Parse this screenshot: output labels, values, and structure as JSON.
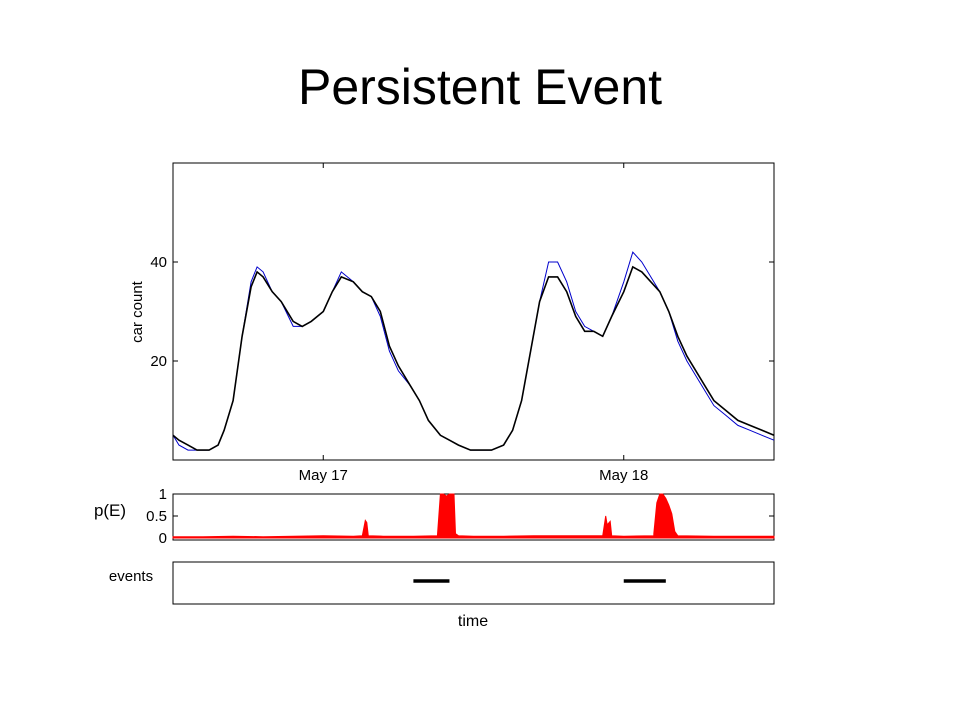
{
  "slide": {
    "title": "Persistent Event"
  },
  "colors": {
    "raw_count": "#0000cc",
    "smoothed_count": "#000000",
    "probability": "#ff0000",
    "event_bar": "#000000"
  },
  "chart_data": [
    {
      "type": "line",
      "ylabel": "car count",
      "ylim": [
        0,
        60
      ],
      "yticks": [
        20,
        40
      ],
      "xlim": [
        0,
        2.0
      ],
      "xticks": [
        {
          "x": 0.5,
          "label": "May 17"
        },
        {
          "x": 1.5,
          "label": "May 18"
        }
      ],
      "x_unit": "days since start of May 16",
      "series": [
        {
          "color": "#0000cc",
          "points": [
            [
              0,
              5
            ],
            [
              0.02,
              3
            ],
            [
              0.05,
              2
            ],
            [
              0.08,
              2
            ],
            [
              0.1,
              2
            ],
            [
              0.12,
              2
            ],
            [
              0.15,
              3
            ],
            [
              0.17,
              6
            ],
            [
              0.2,
              12
            ],
            [
              0.23,
              25
            ],
            [
              0.26,
              36
            ],
            [
              0.28,
              39
            ],
            [
              0.3,
              38
            ],
            [
              0.33,
              34
            ],
            [
              0.36,
              32
            ],
            [
              0.4,
              27
            ],
            [
              0.43,
              27
            ],
            [
              0.46,
              28
            ],
            [
              0.5,
              30
            ],
            [
              0.53,
              34
            ],
            [
              0.56,
              38
            ],
            [
              0.6,
              36
            ],
            [
              0.63,
              34
            ],
            [
              0.66,
              33
            ],
            [
              0.69,
              29
            ],
            [
              0.72,
              22
            ],
            [
              0.75,
              18
            ],
            [
              0.79,
              15
            ],
            [
              0.82,
              12
            ],
            [
              0.85,
              8
            ],
            [
              0.89,
              5
            ],
            [
              0.92,
              4
            ],
            [
              0.95,
              3
            ],
            [
              0.99,
              2
            ],
            [
              1.02,
              2
            ],
            [
              1.06,
              2
            ],
            [
              1.1,
              3
            ],
            [
              1.13,
              6
            ],
            [
              1.16,
              12
            ],
            [
              1.19,
              22
            ],
            [
              1.22,
              32
            ],
            [
              1.25,
              40
            ],
            [
              1.28,
              40
            ],
            [
              1.31,
              36
            ],
            [
              1.34,
              30
            ],
            [
              1.37,
              27
            ],
            [
              1.4,
              26
            ],
            [
              1.43,
              25
            ],
            [
              1.46,
              29
            ],
            [
              1.5,
              36
            ],
            [
              1.53,
              42
            ],
            [
              1.56,
              40
            ],
            [
              1.59,
              37
            ],
            [
              1.62,
              34
            ],
            [
              1.65,
              30
            ],
            [
              1.68,
              24
            ],
            [
              1.71,
              20
            ],
            [
              1.74,
              17
            ],
            [
              1.77,
              14
            ],
            [
              1.8,
              11
            ],
            [
              1.84,
              9
            ],
            [
              1.88,
              7
            ],
            [
              1.92,
              6
            ],
            [
              1.96,
              5
            ],
            [
              2.0,
              4
            ]
          ]
        },
        {
          "color": "#000000",
          "points": [
            [
              0,
              5
            ],
            [
              0.02,
              4
            ],
            [
              0.05,
              3
            ],
            [
              0.08,
              2
            ],
            [
              0.1,
              2
            ],
            [
              0.12,
              2
            ],
            [
              0.15,
              3
            ],
            [
              0.17,
              6
            ],
            [
              0.2,
              12
            ],
            [
              0.23,
              25
            ],
            [
              0.26,
              35
            ],
            [
              0.28,
              38
            ],
            [
              0.3,
              37
            ],
            [
              0.33,
              34
            ],
            [
              0.36,
              32
            ],
            [
              0.4,
              28
            ],
            [
              0.43,
              27
            ],
            [
              0.46,
              28
            ],
            [
              0.5,
              30
            ],
            [
              0.53,
              34
            ],
            [
              0.56,
              37
            ],
            [
              0.6,
              36
            ],
            [
              0.63,
              34
            ],
            [
              0.66,
              33
            ],
            [
              0.69,
              30
            ],
            [
              0.72,
              23
            ],
            [
              0.75,
              19
            ],
            [
              0.79,
              15
            ],
            [
              0.82,
              12
            ],
            [
              0.85,
              8
            ],
            [
              0.89,
              5
            ],
            [
              0.92,
              4
            ],
            [
              0.95,
              3
            ],
            [
              0.99,
              2
            ],
            [
              1.02,
              2
            ],
            [
              1.06,
              2
            ],
            [
              1.1,
              3
            ],
            [
              1.13,
              6
            ],
            [
              1.16,
              12
            ],
            [
              1.19,
              22
            ],
            [
              1.22,
              32
            ],
            [
              1.25,
              37
            ],
            [
              1.28,
              37
            ],
            [
              1.31,
              34
            ],
            [
              1.34,
              29
            ],
            [
              1.37,
              26
            ],
            [
              1.4,
              26
            ],
            [
              1.43,
              25
            ],
            [
              1.46,
              29
            ],
            [
              1.5,
              34
            ],
            [
              1.53,
              39
            ],
            [
              1.56,
              38
            ],
            [
              1.59,
              36
            ],
            [
              1.62,
              34
            ],
            [
              1.65,
              30
            ],
            [
              1.68,
              25
            ],
            [
              1.71,
              21
            ],
            [
              1.74,
              18
            ],
            [
              1.77,
              15
            ],
            [
              1.8,
              12
            ],
            [
              1.84,
              10
            ],
            [
              1.88,
              8
            ],
            [
              1.92,
              7
            ],
            [
              1.96,
              6
            ],
            [
              2.0,
              5
            ]
          ]
        }
      ]
    },
    {
      "type": "area",
      "ylabel": "p(E)",
      "ylim": [
        0,
        1
      ],
      "yticks": [
        0,
        0.5,
        1
      ],
      "ytick_labels": [
        "0",
        "0.5",
        "1"
      ],
      "xlim": [
        0,
        2.0
      ],
      "series": [
        {
          "color": "#ff0000",
          "points": [
            [
              0,
              0.03
            ],
            [
              0.1,
              0.03
            ],
            [
              0.2,
              0.04
            ],
            [
              0.3,
              0.03
            ],
            [
              0.4,
              0.04
            ],
            [
              0.5,
              0.05
            ],
            [
              0.6,
              0.04
            ],
            [
              0.63,
              0.05
            ],
            [
              0.64,
              0.4
            ],
            [
              0.645,
              0.35
            ],
            [
              0.65,
              0.05
            ],
            [
              0.7,
              0.04
            ],
            [
              0.8,
              0.04
            ],
            [
              0.88,
              0.05
            ],
            [
              0.89,
              1.0
            ],
            [
              0.9,
              1.0
            ],
            [
              0.91,
              0.95
            ],
            [
              0.92,
              1.0
            ],
            [
              0.935,
              1.0
            ],
            [
              0.94,
              0.1
            ],
            [
              0.95,
              0.05
            ],
            [
              1.0,
              0.04
            ],
            [
              1.1,
              0.04
            ],
            [
              1.2,
              0.05
            ],
            [
              1.3,
              0.05
            ],
            [
              1.43,
              0.05
            ],
            [
              1.44,
              0.5
            ],
            [
              1.445,
              0.3
            ],
            [
              1.455,
              0.38
            ],
            [
              1.46,
              0.05
            ],
            [
              1.5,
              0.04
            ],
            [
              1.6,
              0.05
            ],
            [
              1.6,
              0.1
            ],
            [
              1.61,
              0.8
            ],
            [
              1.62,
              1.0
            ],
            [
              1.63,
              1.0
            ],
            [
              1.64,
              0.9
            ],
            [
              1.65,
              0.75
            ],
            [
              1.66,
              0.55
            ],
            [
              1.67,
              0.15
            ],
            [
              1.68,
              0.05
            ],
            [
              1.8,
              0.04
            ],
            [
              1.9,
              0.04
            ],
            [
              2.0,
              0.04
            ]
          ]
        }
      ]
    },
    {
      "type": "bar",
      "ylabel": "events",
      "xlabel": "time",
      "xlim": [
        0,
        2.0
      ],
      "intervals": [
        [
          0.8,
          0.92
        ],
        [
          1.5,
          1.64
        ]
      ]
    }
  ]
}
